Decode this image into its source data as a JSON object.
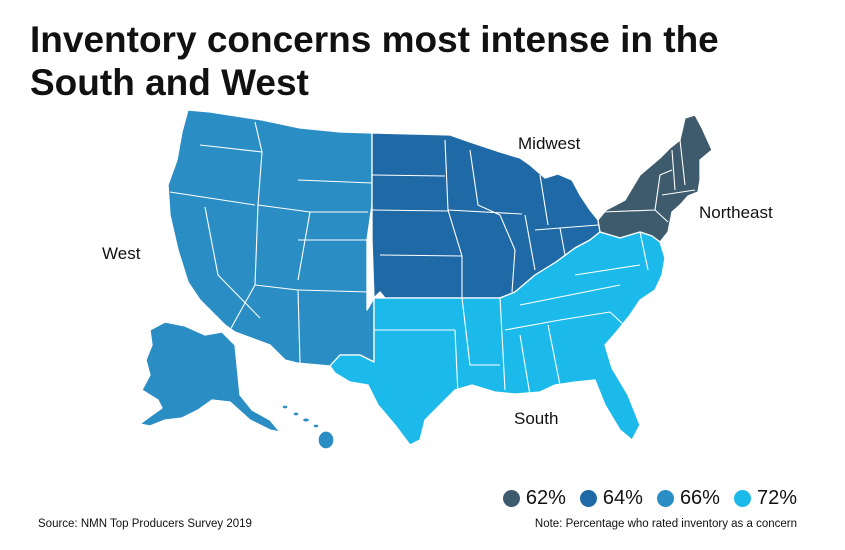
{
  "title": {
    "line1": "Inventory concerns most intense in the",
    "line2": "South and West"
  },
  "regions": [
    {
      "id": "west",
      "label": "West",
      "value": "66%",
      "color": "#2a8ec5"
    },
    {
      "id": "midwest",
      "label": "Midwest",
      "value": "64%",
      "color": "#1f69a6"
    },
    {
      "id": "northeast",
      "label": "Northeast",
      "value": "62%",
      "color": "#3e5a6d"
    },
    {
      "id": "south",
      "label": "South",
      "value": "72%",
      "color": "#1cbaeb"
    }
  ],
  "legend": [
    {
      "label": "62%",
      "color": "#3e5a6d"
    },
    {
      "label": "64%",
      "color": "#1f69a6"
    },
    {
      "label": "66%",
      "color": "#2a8ec5"
    },
    {
      "label": "72%",
      "color": "#1cbaeb"
    }
  ],
  "footer": {
    "source": "Source: NMN Top Producers Survey 2019",
    "note": "Note: Percentage who rated inventory as a concern"
  },
  "chart_data": {
    "type": "choropleth",
    "categories": [
      "Northeast",
      "Midwest",
      "West",
      "South"
    ],
    "values": [
      62,
      64,
      66,
      72
    ],
    "unit": "%"
  }
}
